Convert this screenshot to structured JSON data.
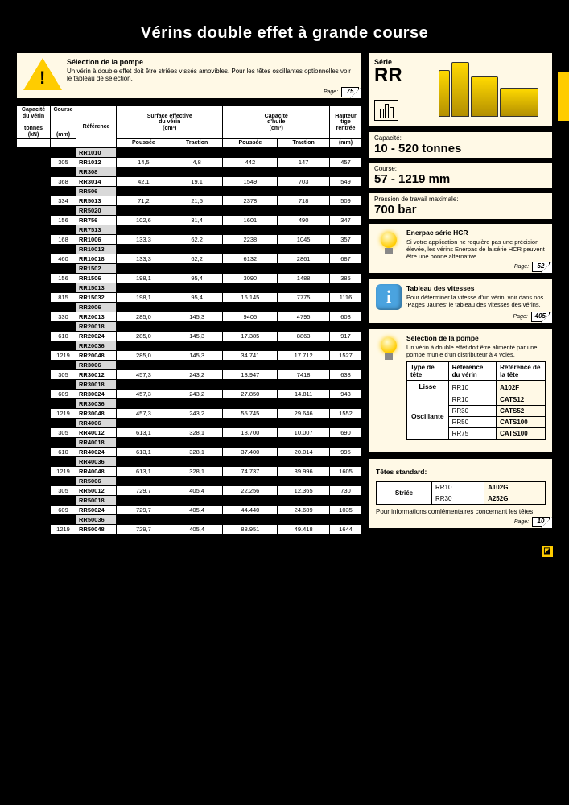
{
  "title": "Vérins double effet à grande course",
  "warning": {
    "heading": "Sélection de la pompe",
    "text": "Un vérin à double effet doit être striées vissés amovibles. Pour les têtes oscillantes optionnelles voir le tableau de sélection.",
    "page_label": "Page:",
    "page_num": "75"
  },
  "series": {
    "label": "Série",
    "value": "RR"
  },
  "specs": [
    {
      "label": "Capacité:",
      "value": "10 - 520 tonnes"
    },
    {
      "label": "Course:",
      "value": "57 - 1219 mm"
    },
    {
      "label": "Pression de travail maximale:",
      "value": "700 bar"
    }
  ],
  "tips": [
    {
      "icon": "bulb",
      "heading": "Enerpac série HCR",
      "text": "Si votre application ne requière pas une précision élevée, les vérins Enerpac de la série HCR peuvent être une bonne alternative.",
      "page_label": "Page:",
      "page_num": "52"
    },
    {
      "icon": "info",
      "heading": "Tableau des vitesses",
      "text": "Pour déterminer la vitesse d'un vérin, voir dans nos 'Pages Jaunes' le tableau des vitesses des vérins.",
      "page_label": "Page:",
      "page_num": "405"
    },
    {
      "icon": "bulb",
      "heading": "Sélection de la pompe",
      "text": "Un vérin à double effet doit être alimenté par une pompe munie d'un distributeur à 4 voies.",
      "page_label": "",
      "page_num": ""
    }
  ],
  "head_table": {
    "headers": [
      "Type de tête",
      "Référence du vérin",
      "Référence de la tête"
    ],
    "rows": [
      {
        "type": "Lisse",
        "ref": "RR10",
        "head": "A102F",
        "rowspan": 1
      },
      {
        "type": "Oscillante",
        "ref": "RR10",
        "head": "CATS12",
        "rowspan": 4
      },
      {
        "type": "",
        "ref": "RR30",
        "head": "CATS52"
      },
      {
        "type": "",
        "ref": "RR50",
        "head": "CATS100"
      },
      {
        "type": "",
        "ref": "RR75",
        "head": "CATS100"
      }
    ]
  },
  "std_heads": {
    "title": "Têtes standard:",
    "rows": [
      {
        "type": "Striée",
        "ref": "RR10",
        "head": "A102G",
        "rowspan": 2
      },
      {
        "type": "",
        "ref": "RR30",
        "head": "A252G"
      }
    ],
    "note": "Pour informations comlémentaires concernant les têtes.",
    "page_label": "Page:",
    "page_num": "10"
  },
  "main_table": {
    "headers_row1": [
      "Capacité du vérin",
      "Course",
      "Référence",
      "Surface effective du vérin",
      "Capacité d'huile",
      "Hauteur tige rentrée"
    ],
    "headers_row2": [
      "tonnes (kN)",
      "(mm)",
      "",
      "(cm²)",
      "(cm³)",
      ""
    ],
    "headers_row3": [
      "",
      "",
      "",
      "Poussée",
      "Traction",
      "Poussée",
      "Traction",
      "(mm)"
    ],
    "rows": [
      [
        "",
        "",
        "RR1010",
        "",
        "",
        "",
        "",
        ""
      ],
      [
        "",
        "305",
        "RR1012",
        "14,5",
        "4,8",
        "442",
        "147",
        "457"
      ],
      [
        "",
        "",
        "RR308",
        "",
        "",
        "",
        "",
        ""
      ],
      [
        "",
        "368",
        "RR3014",
        "42,1",
        "19,1",
        "1549",
        "703",
        "549"
      ],
      [
        "",
        "",
        "RR506",
        "",
        "",
        "",
        "",
        ""
      ],
      [
        "",
        "334",
        "RR5013",
        "71,2",
        "21,5",
        "2378",
        "718",
        "509"
      ],
      [
        "",
        "",
        "RR5020",
        "",
        "",
        "",
        "",
        ""
      ],
      [
        "",
        "156",
        "RR756",
        "102,6",
        "31,4",
        "1601",
        "490",
        "347"
      ],
      [
        "",
        "",
        "RR7513",
        "",
        "",
        "",
        "",
        ""
      ],
      [
        "",
        "168",
        "RR1006",
        "133,3",
        "62,2",
        "2238",
        "1045",
        "357"
      ],
      [
        "",
        "",
        "RR10013",
        "",
        "",
        "",
        "",
        ""
      ],
      [
        "",
        "460",
        "RR10018",
        "133,3",
        "62,2",
        "6132",
        "2861",
        "687"
      ],
      [
        "",
        "",
        "RR1502",
        "",
        "",
        "",
        "",
        ""
      ],
      [
        "",
        "156",
        "RR1506",
        "198,1",
        "95,4",
        "3090",
        "1488",
        "385"
      ],
      [
        "",
        "",
        "RR15013",
        "",
        "",
        "",
        "",
        ""
      ],
      [
        "",
        "815",
        "RR15032",
        "198,1",
        "95,4",
        "16.145",
        "7775",
        "1116"
      ],
      [
        "",
        "",
        "RR2006",
        "",
        "",
        "",
        "",
        ""
      ],
      [
        "",
        "330",
        "RR20013",
        "285,0",
        "145,3",
        "9405",
        "4795",
        "608"
      ],
      [
        "",
        "",
        "RR20018",
        "",
        "",
        "",
        "",
        ""
      ],
      [
        "",
        "610",
        "RR20024",
        "285,0",
        "145,3",
        "17.385",
        "8863",
        "917"
      ],
      [
        "",
        "",
        "RR20036",
        "",
        "",
        "",
        "",
        ""
      ],
      [
        "",
        "1219",
        "RR20048",
        "285,0",
        "145,3",
        "34.741",
        "17.712",
        "1527"
      ],
      [
        "",
        "",
        "RR3006",
        "",
        "",
        "",
        "",
        ""
      ],
      [
        "",
        "305",
        "RR30012",
        "457,3",
        "243,2",
        "13.947",
        "7418",
        "638"
      ],
      [
        "",
        "",
        "RR30018",
        "",
        "",
        "",
        "",
        ""
      ],
      [
        "",
        "609",
        "RR30024",
        "457,3",
        "243,2",
        "27.850",
        "14.811",
        "943"
      ],
      [
        "",
        "",
        "RR30036",
        "",
        "",
        "",
        "",
        ""
      ],
      [
        "",
        "1219",
        "RR30048",
        "457,3",
        "243,2",
        "55.745",
        "29.646",
        "1552"
      ],
      [
        "",
        "",
        "RR4006",
        "",
        "",
        "",
        "",
        ""
      ],
      [
        "",
        "305",
        "RR40012",
        "613,1",
        "328,1",
        "18.700",
        "10.007",
        "690"
      ],
      [
        "",
        "",
        "RR40018",
        "",
        "",
        "",
        "",
        ""
      ],
      [
        "",
        "610",
        "RR40024",
        "613,1",
        "328,1",
        "37.400",
        "20.014",
        "995"
      ],
      [
        "",
        "",
        "RR40036",
        "",
        "",
        "",
        "",
        ""
      ],
      [
        "",
        "1219",
        "RR40048",
        "613,1",
        "328,1",
        "74.737",
        "39.996",
        "1605"
      ],
      [
        "",
        "",
        "RR5006",
        "",
        "",
        "",
        "",
        ""
      ],
      [
        "",
        "305",
        "RR50012",
        "729,7",
        "405,4",
        "22.256",
        "12.365",
        "730"
      ],
      [
        "",
        "",
        "RR50018",
        "",
        "",
        "",
        "",
        ""
      ],
      [
        "",
        "609",
        "RR50024",
        "729,7",
        "405,4",
        "44.440",
        "24.689",
        "1035"
      ],
      [
        "",
        "",
        "RR50036",
        "",
        "",
        "",
        "",
        ""
      ],
      [
        "",
        "1219",
        "RR50048",
        "729,7",
        "405,4",
        "88.951",
        "49.418",
        "1644"
      ]
    ]
  }
}
